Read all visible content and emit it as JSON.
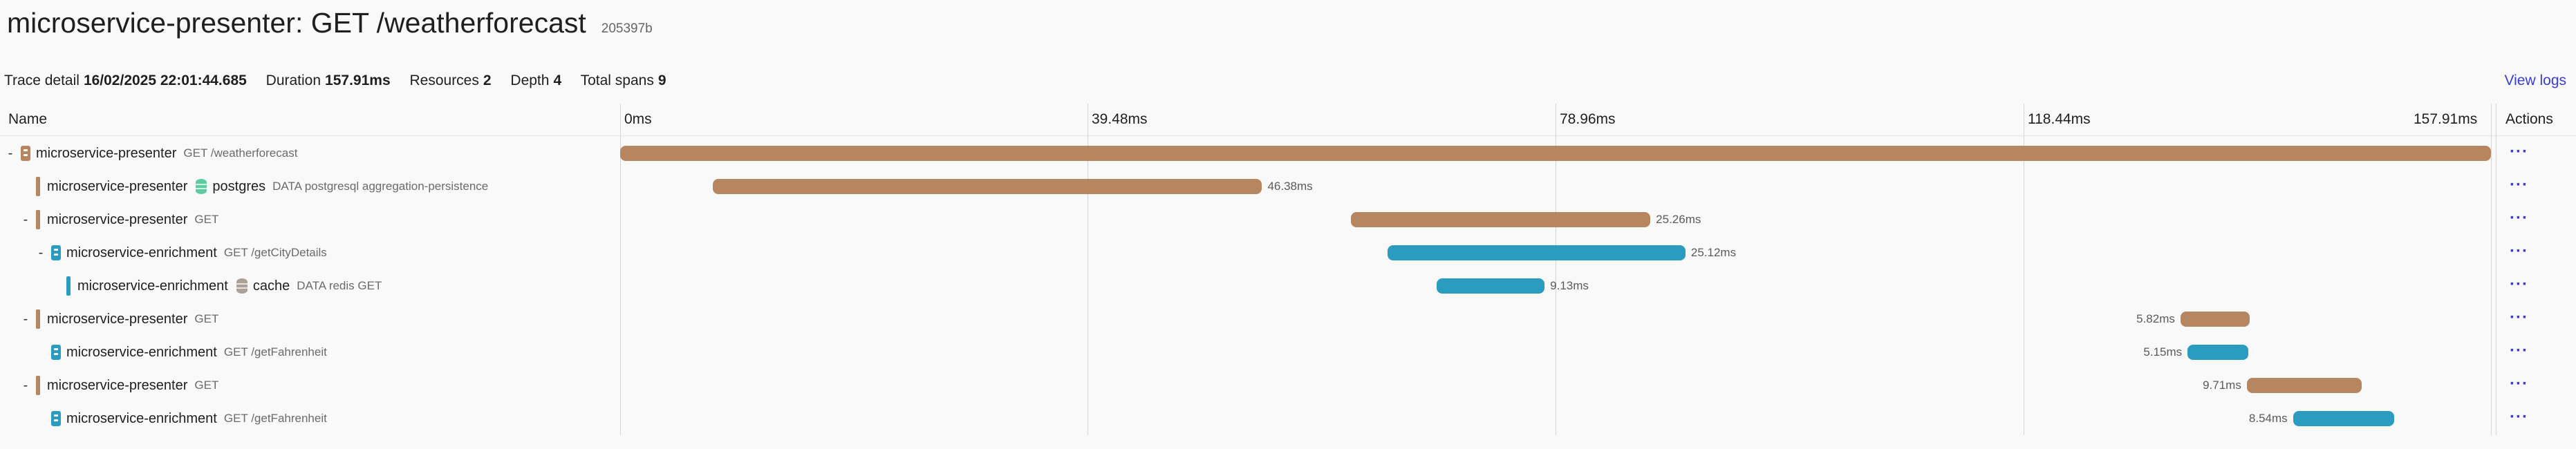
{
  "header": {
    "title": "microservice-presenter: GET /weatherforecast",
    "trace_id": "205397b"
  },
  "summary": {
    "trace_detail_label": "Trace detail",
    "trace_detail_value": "16/02/2025 22:01:44.685",
    "duration_label": "Duration",
    "duration_value": "157.91ms",
    "resources_label": "Resources",
    "resources_value": "2",
    "depth_label": "Depth",
    "depth_value": "4",
    "total_spans_label": "Total spans",
    "total_spans_value": "9"
  },
  "view_logs": "View logs",
  "columns": {
    "name": "Name",
    "actions": "Actions"
  },
  "timeline": {
    "ticks": [
      "0ms",
      "39.48ms",
      "78.96ms",
      "118.44ms",
      "157.91ms"
    ],
    "total_ms": 157.91
  },
  "colors": {
    "presenter": "#b5865f",
    "enrichment": "#2a9cbf",
    "postgres": "#5ecca0",
    "cache": "#aaa298"
  },
  "spans": [
    {
      "toggle": "-",
      "indent": 0,
      "service": "microservice-presenter",
      "resource": "presenter",
      "icon": "service-icon",
      "target": "",
      "detail": "GET /weatherforecast",
      "start_ms": 0,
      "duration_ms": 157.91,
      "duration_label": "",
      "label_side": "right"
    },
    {
      "toggle": "",
      "indent": 1,
      "service": "microservice-presenter",
      "resource": "presenter",
      "icon": "stripe",
      "target": "postgres",
      "target_icon": "database-icon",
      "target_color": "postgres",
      "detail": "DATA postgresql aggregation-persistence",
      "start_ms": 7.8,
      "duration_ms": 46.38,
      "duration_label": "46.38ms",
      "label_side": "right"
    },
    {
      "toggle": "-",
      "indent": 1,
      "service": "microservice-presenter",
      "resource": "presenter",
      "icon": "stripe",
      "target": "",
      "detail": "GET",
      "start_ms": 61.7,
      "duration_ms": 25.26,
      "duration_label": "25.26ms",
      "label_side": "right"
    },
    {
      "toggle": "-",
      "indent": 2,
      "service": "microservice-enrichment",
      "resource": "enrichment",
      "icon": "service-icon",
      "target": "",
      "detail": "GET /getCityDetails",
      "start_ms": 64.8,
      "duration_ms": 25.12,
      "duration_label": "25.12ms",
      "label_side": "right"
    },
    {
      "toggle": "",
      "indent": 3,
      "service": "microservice-enrichment",
      "resource": "enrichment",
      "icon": "stripe",
      "target": "cache",
      "target_icon": "cache-icon",
      "target_color": "cache",
      "detail": "DATA redis GET",
      "start_ms": 68.9,
      "duration_ms": 9.13,
      "duration_label": "9.13ms",
      "label_side": "right"
    },
    {
      "toggle": "-",
      "indent": 1,
      "service": "microservice-presenter",
      "resource": "presenter",
      "icon": "stripe",
      "target": "",
      "detail": "GET",
      "start_ms": 131.7,
      "duration_ms": 5.82,
      "duration_label": "5.82ms",
      "label_side": "left"
    },
    {
      "toggle": "",
      "indent": 2,
      "service": "microservice-enrichment",
      "resource": "enrichment",
      "icon": "service-icon",
      "target": "",
      "detail": "GET /getFahrenheit",
      "start_ms": 132.3,
      "duration_ms": 5.15,
      "duration_label": "5.15ms",
      "label_side": "left"
    },
    {
      "toggle": "-",
      "indent": 1,
      "service": "microservice-presenter",
      "resource": "presenter",
      "icon": "stripe",
      "target": "",
      "detail": "GET",
      "start_ms": 137.3,
      "duration_ms": 9.71,
      "duration_label": "9.71ms",
      "label_side": "left"
    },
    {
      "toggle": "",
      "indent": 2,
      "service": "microservice-enrichment",
      "resource": "enrichment",
      "icon": "service-icon",
      "target": "",
      "detail": "GET /getFahrenheit",
      "start_ms": 141.2,
      "duration_ms": 8.54,
      "duration_label": "8.54ms",
      "label_side": "left"
    }
  ],
  "actions_glyph": "···"
}
